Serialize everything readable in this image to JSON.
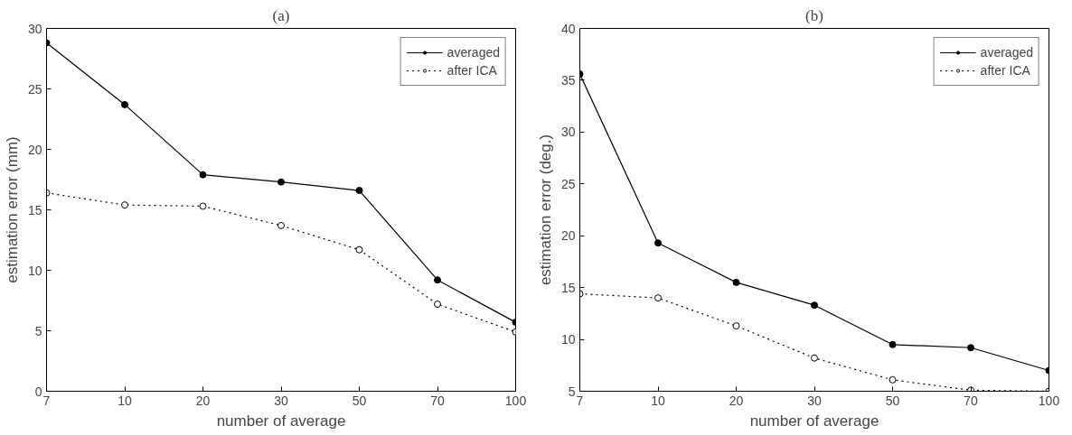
{
  "chart_data": [
    {
      "type": "line",
      "title": "(a)",
      "xlabel": "number of average",
      "ylabel": "estimation error (mm)",
      "categories": [
        "7",
        "10",
        "20",
        "30",
        "50",
        "70",
        "100"
      ],
      "ylim": [
        0,
        30
      ],
      "yticks": [
        0,
        5,
        10,
        15,
        20,
        25,
        30
      ],
      "grid": false,
      "legend": "top right",
      "series": [
        {
          "name": "averaged",
          "color": "#000000",
          "marker": "circle",
          "line_style": "solid",
          "values": [
            28.8,
            23.7,
            17.9,
            17.3,
            16.6,
            9.2,
            5.7
          ]
        },
        {
          "name": "after ICA",
          "color": "#000000",
          "marker": "circle",
          "line_style": "dotted",
          "values": [
            16.4,
            15.4,
            15.3,
            13.7,
            11.7,
            7.2,
            4.9
          ]
        }
      ]
    },
    {
      "type": "line",
      "title": "(b)",
      "xlabel": "number of average",
      "ylabel": "estimation error (deg.)",
      "categories": [
        "7",
        "10",
        "20",
        "30",
        "50",
        "70",
        "100"
      ],
      "ylim": [
        5,
        40
      ],
      "yticks": [
        5,
        10,
        15,
        20,
        25,
        30,
        35,
        40
      ],
      "grid": false,
      "legend": "top right",
      "series": [
        {
          "name": "averaged",
          "color": "#000000",
          "marker": "circle",
          "line_style": "solid",
          "values": [
            35.6,
            19.3,
            15.5,
            13.3,
            9.5,
            9.2,
            7.0
          ]
        },
        {
          "name": "after ICA",
          "color": "#000000",
          "marker": "circle",
          "line_style": "dotted",
          "values": [
            14.4,
            14.0,
            11.3,
            8.2,
            6.1,
            5.1,
            5.0
          ]
        }
      ]
    }
  ]
}
